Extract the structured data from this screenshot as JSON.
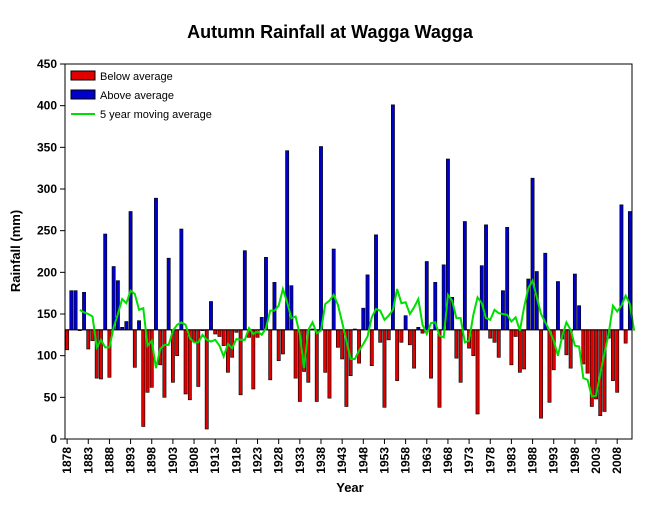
{
  "chart_data": {
    "type": "bar",
    "title": "Autumn Rainfall at Wagga Wagga",
    "xlabel": "Year",
    "ylabel": "Rainfall (mm)",
    "ylim": [
      0,
      450
    ],
    "yticks": [
      0,
      50,
      100,
      150,
      200,
      250,
      300,
      350,
      400,
      450
    ],
    "xticks": [
      1878,
      1883,
      1888,
      1893,
      1898,
      1903,
      1908,
      1913,
      1918,
      1923,
      1928,
      1933,
      1938,
      1943,
      1948,
      1953,
      1958,
      1963,
      1968,
      1973,
      1978,
      1983,
      1988,
      1993,
      1998,
      2003,
      2008
    ],
    "baseline": 131,
    "grid": false,
    "legend_position": "top-left",
    "colors": {
      "below": "#e00000",
      "above": "#0000cc",
      "moving_average": "#00dd00"
    },
    "series": [
      {
        "name": "Below average"
      },
      {
        "name": "Above average"
      },
      {
        "name": "5 year moving average"
      }
    ],
    "x_start": 1878,
    "values": [
      107,
      178,
      178,
      130,
      176,
      108,
      118,
      73,
      72,
      246,
      74,
      207,
      190,
      134,
      141,
      273,
      86,
      142,
      15,
      56,
      62,
      289,
      89,
      50,
      217,
      68,
      100,
      252,
      54,
      47,
      117,
      63,
      130,
      12,
      165,
      126,
      123,
      112,
      80,
      98,
      128,
      53,
      226,
      122,
      60,
      122,
      146,
      218,
      71,
      188,
      94,
      102,
      346,
      184,
      73,
      45,
      81,
      68,
      132,
      45,
      351,
      80,
      49,
      228,
      110,
      96,
      39,
      76,
      132,
      91,
      157,
      197,
      88,
      245,
      116,
      38,
      119,
      401,
      70,
      116,
      148,
      113,
      85,
      134,
      127,
      213,
      73,
      188,
      38,
      209,
      336,
      170,
      97,
      68,
      261,
      109,
      100,
      30,
      208,
      257,
      121,
      116,
      98,
      178,
      254,
      89,
      123,
      80,
      84,
      192,
      313,
      201,
      25,
      223,
      44,
      83,
      189,
      120,
      101,
      85,
      198,
      160,
      90,
      79,
      39,
      48,
      28,
      33,
      121,
      70,
      56,
      281,
      115,
      273
    ],
    "moving_average": [
      null,
      null,
      null,
      155,
      152,
      150,
      147,
      110,
      119,
      110,
      110,
      134,
      150,
      168,
      163,
      178,
      174,
      155,
      157,
      112,
      118,
      85,
      108,
      113,
      113,
      130,
      137,
      140,
      137,
      121,
      116,
      116,
      125,
      119,
      117,
      119,
      112,
      99,
      114,
      109,
      120,
      119,
      119,
      133,
      126,
      129,
      125,
      133,
      154,
      154,
      160,
      180,
      164,
      145,
      147,
      125,
      85,
      131,
      140,
      127,
      130,
      162,
      166,
      173,
      161,
      140,
      118,
      96,
      96,
      106,
      114,
      123,
      146,
      156,
      154,
      143,
      148,
      155,
      180,
      163,
      164,
      150,
      158,
      168,
      137,
      126,
      139,
      140,
      124,
      122,
      173,
      166,
      145,
      145,
      116,
      118,
      149,
      170,
      163,
      145,
      143,
      155,
      151,
      150,
      149,
      141,
      146,
      130,
      158,
      181,
      190,
      170,
      150,
      140,
      130,
      118,
      100,
      123,
      140,
      131,
      112,
      111,
      73,
      71,
      51,
      52,
      78,
      103,
      127,
      160,
      153,
      160,
      172,
      162,
      130
    ]
  }
}
